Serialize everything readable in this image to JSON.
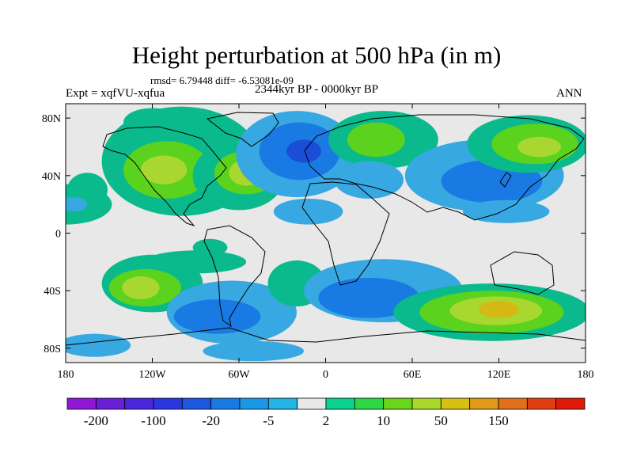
{
  "title": "Height perturbation at 500 hPa (in m)",
  "stats": "rmsd= 6.79448 diff= -6.53081e-09",
  "period": "2344kyr BP - 0000kyr BP",
  "experiment": "Expt = xqfVU-xqfua",
  "season": "ANN",
  "map": {
    "projection": "cylindrical-equidistant",
    "lon_range": [
      -180,
      180
    ],
    "lat_range": [
      -90,
      90
    ],
    "lon_ticks": [
      {
        "value": -180,
        "label": "180"
      },
      {
        "value": -120,
        "label": "120W"
      },
      {
        "value": -60,
        "label": "60W"
      },
      {
        "value": 0,
        "label": "0"
      },
      {
        "value": 60,
        "label": "60E"
      },
      {
        "value": 120,
        "label": "120E"
      },
      {
        "value": 180,
        "label": "180"
      }
    ],
    "lat_ticks": [
      {
        "value": 80,
        "label": "80N"
      },
      {
        "value": 40,
        "label": "40N"
      },
      {
        "value": 0,
        "label": "0"
      },
      {
        "value": -40,
        "label": "40S"
      },
      {
        "value": -80,
        "label": "80S"
      }
    ],
    "background_level_color": "#e8e8e8",
    "regions": [
      {
        "color": "#0aba8c",
        "lon": -180,
        "lat": 20,
        "rx": 32,
        "ry": 14
      },
      {
        "color": "#0aba8c",
        "lon": -100,
        "lat": 50,
        "rx": 55,
        "ry": 38
      },
      {
        "color": "#5ad21e",
        "lon": -110,
        "lat": 44,
        "rx": 30,
        "ry": 20
      },
      {
        "color": "#a8d830",
        "lon": -112,
        "lat": 44,
        "rx": 16,
        "ry": 10
      },
      {
        "color": "#0aba8c",
        "lon": -60,
        "lat": 40,
        "rx": 32,
        "ry": 24
      },
      {
        "color": "#5ad21e",
        "lon": -55,
        "lat": 42,
        "rx": 22,
        "ry": 15
      },
      {
        "color": "#a8d830",
        "lon": -55,
        "lat": 42,
        "rx": 12,
        "ry": 9
      },
      {
        "color": "#d4b814",
        "lon": -53,
        "lat": 42,
        "rx": 5,
        "ry": 4
      },
      {
        "color": "#0aba8c",
        "lon": -120,
        "lat": 77,
        "rx": 20,
        "ry": 10
      },
      {
        "color": "#38a8e2",
        "lon": -20,
        "lat": 55,
        "rx": 42,
        "ry": 30
      },
      {
        "color": "#1a7ae4",
        "lon": -18,
        "lat": 57,
        "rx": 28,
        "ry": 20
      },
      {
        "color": "#1a4ed6",
        "lon": -15,
        "lat": 57,
        "rx": 12,
        "ry": 8
      },
      {
        "color": "#0aba8c",
        "lon": 40,
        "lat": 65,
        "rx": 38,
        "ry": 20
      },
      {
        "color": "#5ad21e",
        "lon": 35,
        "lat": 65,
        "rx": 20,
        "ry": 12
      },
      {
        "color": "#38a8e2",
        "lon": 30,
        "lat": 37,
        "rx": 24,
        "ry": 13
      },
      {
        "color": "#38a8e2",
        "lon": 110,
        "lat": 40,
        "rx": 55,
        "ry": 25
      },
      {
        "color": "#1a7ae4",
        "lon": 115,
        "lat": 36,
        "rx": 35,
        "ry": 15
      },
      {
        "color": "#0aba8c",
        "lon": 140,
        "lat": 62,
        "rx": 42,
        "ry": 20
      },
      {
        "color": "#5ad21e",
        "lon": 145,
        "lat": 62,
        "rx": 30,
        "ry": 14
      },
      {
        "color": "#a8d830",
        "lon": 148,
        "lat": 60,
        "rx": 15,
        "ry": 7
      },
      {
        "color": "#0aba8c",
        "lon": -165,
        "lat": 30,
        "rx": 14,
        "ry": 12
      },
      {
        "color": "#38a8e2",
        "lon": -12,
        "lat": 15,
        "rx": 24,
        "ry": 9
      },
      {
        "color": "#38a8e2",
        "lon": 125,
        "lat": 15,
        "rx": 30,
        "ry": 8
      },
      {
        "color": "#38a8e2",
        "lon": -175,
        "lat": 20,
        "rx": 10,
        "ry": 5
      },
      {
        "color": "#0aba8c",
        "lon": -90,
        "lat": -20,
        "rx": 35,
        "ry": 8
      },
      {
        "color": "#0aba8c",
        "lon": -120,
        "lat": -35,
        "rx": 35,
        "ry": 20
      },
      {
        "color": "#5ad21e",
        "lon": -125,
        "lat": -38,
        "rx": 25,
        "ry": 13
      },
      {
        "color": "#a8d830",
        "lon": -128,
        "lat": -38,
        "rx": 13,
        "ry": 8
      },
      {
        "color": "#38a8e2",
        "lon": -65,
        "lat": -55,
        "rx": 45,
        "ry": 22
      },
      {
        "color": "#1a7ae4",
        "lon": -75,
        "lat": -58,
        "rx": 30,
        "ry": 12
      },
      {
        "color": "#0aba8c",
        "lon": -20,
        "lat": -35,
        "rx": 20,
        "ry": 16
      },
      {
        "color": "#38a8e2",
        "lon": 40,
        "lat": -40,
        "rx": 55,
        "ry": 22
      },
      {
        "color": "#1a7ae4",
        "lon": 30,
        "lat": -45,
        "rx": 35,
        "ry": 14
      },
      {
        "color": "#0aba8c",
        "lon": 115,
        "lat": -55,
        "rx": 68,
        "ry": 20
      },
      {
        "color": "#5ad21e",
        "lon": 115,
        "lat": -55,
        "rx": 50,
        "ry": 15
      },
      {
        "color": "#a8d830",
        "lon": 118,
        "lat": -54,
        "rx": 32,
        "ry": 10
      },
      {
        "color": "#d4b814",
        "lon": 120,
        "lat": -53,
        "rx": 14,
        "ry": 6
      },
      {
        "color": "#38a8e2",
        "lon": -160,
        "lat": -78,
        "rx": 25,
        "ry": 8
      },
      {
        "color": "#38a8e2",
        "lon": -50,
        "lat": -82,
        "rx": 35,
        "ry": 7
      },
      {
        "color": "#0aba8c",
        "lon": -80,
        "lat": -10,
        "rx": 12,
        "ry": 6
      }
    ]
  },
  "colorbar": {
    "colors": [
      "#8e18d6",
      "#6a1ed6",
      "#4a26dc",
      "#2a36de",
      "#1a58e0",
      "#1a7ae4",
      "#1a98e8",
      "#22b4e4",
      "#e8e8e8",
      "#0ad28c",
      "#2ed646",
      "#6ad61a",
      "#a8d82a",
      "#d6c014",
      "#e09a18",
      "#e27018",
      "#e23e14",
      "#e01a0a"
    ],
    "labels": [
      {
        "boundary": 1,
        "text": "-200"
      },
      {
        "boundary": 3,
        "text": "-100"
      },
      {
        "boundary": 5,
        "text": "-20"
      },
      {
        "boundary": 7,
        "text": "-5"
      },
      {
        "boundary": 9,
        "text": "2"
      },
      {
        "boundary": 11,
        "text": "10"
      },
      {
        "boundary": 13,
        "text": "50"
      },
      {
        "boundary": 15,
        "text": "150"
      }
    ]
  }
}
